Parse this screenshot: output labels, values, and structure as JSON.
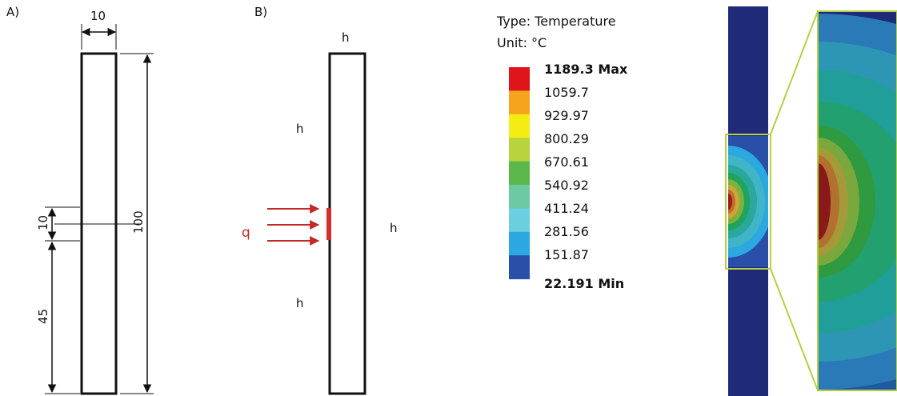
{
  "panel_a": {
    "label": "A)",
    "dim_width": "10",
    "dim_height": "100",
    "dim_heated": "10",
    "dim_lower": "45"
  },
  "panel_b": {
    "label": "B)",
    "h_top": "h",
    "h_left_upper": "h",
    "h_right": "h",
    "h_left_lower": "h",
    "q": "q"
  },
  "legend": {
    "type_text": "Type: Temperature",
    "unit_text": "Unit: °C",
    "max_label": "1189.3 Max",
    "values": [
      "1059.7",
      "929.97",
      "800.29",
      "670.61",
      "540.92",
      "411.24",
      "281.56",
      "151.87"
    ],
    "min_label": "22.191 Min",
    "colors": [
      "#e0141b",
      "#f7a41d",
      "#f4ec13",
      "#b8d43c",
      "#5cb84a",
      "#6cc9a4",
      "#6ccfdf",
      "#2ba8df",
      "#2a4fa8"
    ]
  },
  "contour": {
    "background": "#1f2a78",
    "callout_color": "#b5cf45"
  }
}
